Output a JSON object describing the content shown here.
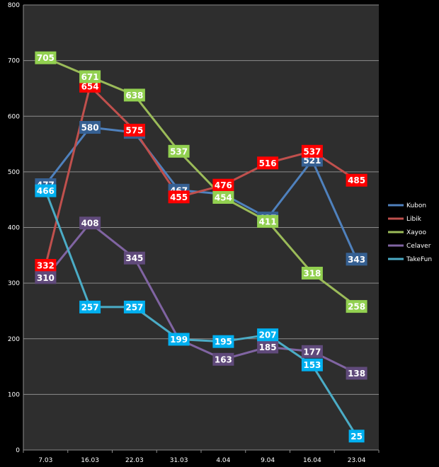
{
  "chart_data": {
    "type": "line",
    "categories": [
      "7.03",
      "16.03",
      "22.03",
      "31.03",
      "4.04",
      "9.04",
      "16.04",
      "23.04"
    ],
    "ylim": [
      0,
      800
    ],
    "yticks": [
      0,
      100,
      200,
      300,
      400,
      500,
      600,
      700,
      800
    ],
    "grid": true,
    "legend": "right",
    "series": [
      {
        "name": "Kubon",
        "color": "#4f81bd",
        "label_bg": "#366092",
        "values": [
          477,
          580,
          571,
          467,
          460,
          417,
          521,
          343
        ]
      },
      {
        "name": "Libik",
        "color": "#c0504d",
        "label_bg": "#ff0000",
        "values": [
          332,
          654,
          575,
          455,
          476,
          516,
          537,
          485
        ]
      },
      {
        "name": "Xayoo",
        "color": "#9bbb59",
        "label_bg": "#92d050",
        "values": [
          705,
          671,
          638,
          537,
          454,
          411,
          318,
          258
        ]
      },
      {
        "name": "Celaver",
        "color": "#8064a2",
        "label_bg": "#604a7b",
        "values": [
          310,
          408,
          345,
          199,
          163,
          185,
          177,
          138
        ]
      },
      {
        "name": "TakeFun",
        "color": "#4bacc6",
        "label_bg": "#00b0f0",
        "values": [
          466,
          257,
          257,
          199,
          195,
          207,
          153,
          25
        ]
      }
    ]
  }
}
